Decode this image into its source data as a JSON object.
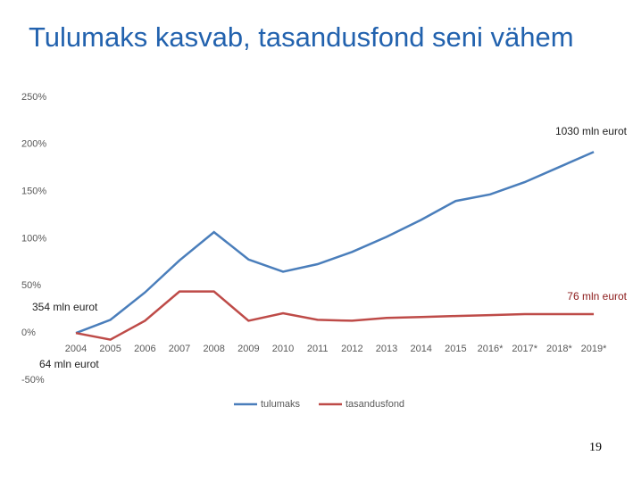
{
  "chart_data": {
    "type": "line",
    "title": "Tulumaks kasvab, tasandusfond seni vähem",
    "categories": [
      "2004",
      "2005",
      "2006",
      "2007",
      "2008",
      "2009",
      "2010",
      "2011",
      "2012",
      "2013",
      "2014",
      "2015",
      "2016*",
      "2017*",
      "2018*",
      "2019*"
    ],
    "series": [
      {
        "name": "tulumaks",
        "color": "#4a7ebb",
        "values": [
          0,
          14,
          43,
          77,
          107,
          78,
          65,
          73,
          86,
          102,
          120,
          140,
          147,
          160,
          176,
          192
        ]
      },
      {
        "name": "tasandusfond",
        "color": "#be4b48",
        "values": [
          0,
          -7,
          13,
          44,
          44,
          13,
          21,
          14,
          13,
          16,
          17,
          18,
          19,
          20,
          20,
          20
        ]
      }
    ],
    "ylim": [
      -50,
      250
    ],
    "yticks": [
      {
        "value": -50,
        "label": "-50%"
      },
      {
        "value": 0,
        "label": "0%"
      },
      {
        "value": 50,
        "label": "50%"
      },
      {
        "value": 100,
        "label": "100%"
      },
      {
        "value": 150,
        "label": "150%"
      },
      {
        "value": 200,
        "label": "200%"
      },
      {
        "value": 250,
        "label": "250%"
      }
    ],
    "grid": false,
    "legend": "bottom",
    "annotations": [
      "1030 mln eurot",
      "354 mln eurot",
      "76 mln eurot",
      "64 mln eurot"
    ]
  },
  "page_number": 19
}
